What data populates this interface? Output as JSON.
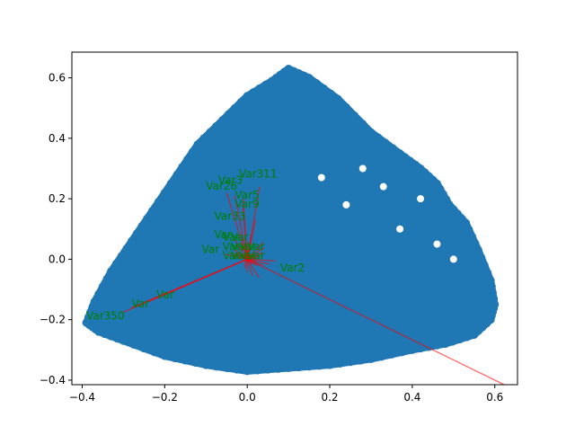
{
  "chart_data": {
    "type": "scatter",
    "title": "",
    "xlabel": "",
    "ylabel": "",
    "xlim": [
      -0.425,
      0.655
    ],
    "ylim": [
      -0.415,
      0.685
    ],
    "xticks": [
      -0.4,
      -0.2,
      0.0,
      0.2,
      0.4,
      0.6
    ],
    "yticks": [
      -0.4,
      -0.2,
      0.0,
      0.2,
      0.4,
      0.6
    ],
    "xtick_labels": [
      "−0.4",
      "−0.2",
      "0.0",
      "0.2",
      "0.4",
      "0.6"
    ],
    "ytick_labels": [
      "−0.4",
      "−0.2",
      "0.0",
      "0.2",
      "0.4",
      "0.6"
    ],
    "grid": false,
    "point_color": "#1f77b4",
    "arrow_color": "#ff0000",
    "label_color": "#008000",
    "point_cloud": {
      "description_shape": "dense triangular cloud",
      "outline": [
        [
          -0.39,
          -0.21
        ],
        [
          -0.37,
          -0.14
        ],
        [
          -0.33,
          -0.04
        ],
        [
          -0.28,
          0.06
        ],
        [
          -0.23,
          0.16
        ],
        [
          -0.17,
          0.28
        ],
        [
          -0.12,
          0.38
        ],
        [
          -0.06,
          0.46
        ],
        [
          0.0,
          0.54
        ],
        [
          0.06,
          0.59
        ],
        [
          0.1,
          0.63
        ],
        [
          0.15,
          0.6
        ],
        [
          0.22,
          0.53
        ],
        [
          0.3,
          0.42
        ],
        [
          0.37,
          0.35
        ],
        [
          0.42,
          0.3
        ],
        [
          0.46,
          0.25
        ],
        [
          0.49,
          0.18
        ],
        [
          0.53,
          0.12
        ],
        [
          0.56,
          0.03
        ],
        [
          0.59,
          -0.07
        ],
        [
          0.6,
          -0.15
        ],
        [
          0.59,
          -0.2
        ],
        [
          0.55,
          -0.25
        ],
        [
          0.48,
          -0.28
        ],
        [
          0.4,
          -0.3
        ],
        [
          0.3,
          -0.33
        ],
        [
          0.2,
          -0.35
        ],
        [
          0.1,
          -0.36
        ],
        [
          0.0,
          -0.37
        ],
        [
          -0.1,
          -0.35
        ],
        [
          -0.2,
          -0.32
        ],
        [
          -0.3,
          -0.27
        ],
        [
          -0.36,
          -0.24
        ]
      ]
    },
    "loadings": [
      {
        "label": "Var350",
        "x": -0.3,
        "y": -0.175,
        "lx": -0.39,
        "ly": -0.2
      },
      {
        "label": "Var",
        "x": -0.28,
        "y": -0.16,
        "lx": -0.28,
        "ly": -0.16
      },
      {
        "label": "Var",
        "x": -0.24,
        "y": -0.14,
        "lx": -0.22,
        "ly": -0.13
      },
      {
        "label": "Var2",
        "x": 0.63,
        "y": -0.42,
        "lx": 0.08,
        "ly": -0.04
      },
      {
        "label": "Var311",
        "x": 0.03,
        "y": 0.24,
        "lx": -0.02,
        "ly": 0.27
      },
      {
        "label": "Var26",
        "x": -0.05,
        "y": 0.22,
        "lx": -0.1,
        "ly": 0.23
      },
      {
        "label": "Var3",
        "x": -0.03,
        "y": 0.21,
        "lx": -0.07,
        "ly": 0.25
      },
      {
        "label": "Var5",
        "x": -0.01,
        "y": 0.2,
        "lx": -0.03,
        "ly": 0.2
      },
      {
        "label": "Var9",
        "x": -0.01,
        "y": 0.17,
        "lx": -0.03,
        "ly": 0.17
      },
      {
        "label": "Var33",
        "x": 0.02,
        "y": 0.13,
        "lx": -0.08,
        "ly": 0.13
      },
      {
        "label": "Var",
        "x": 0.01,
        "y": 0.08,
        "lx": -0.08,
        "ly": 0.07
      },
      {
        "label": "Var",
        "x": -0.03,
        "y": 0.03,
        "lx": -0.11,
        "ly": 0.02
      }
    ]
  }
}
